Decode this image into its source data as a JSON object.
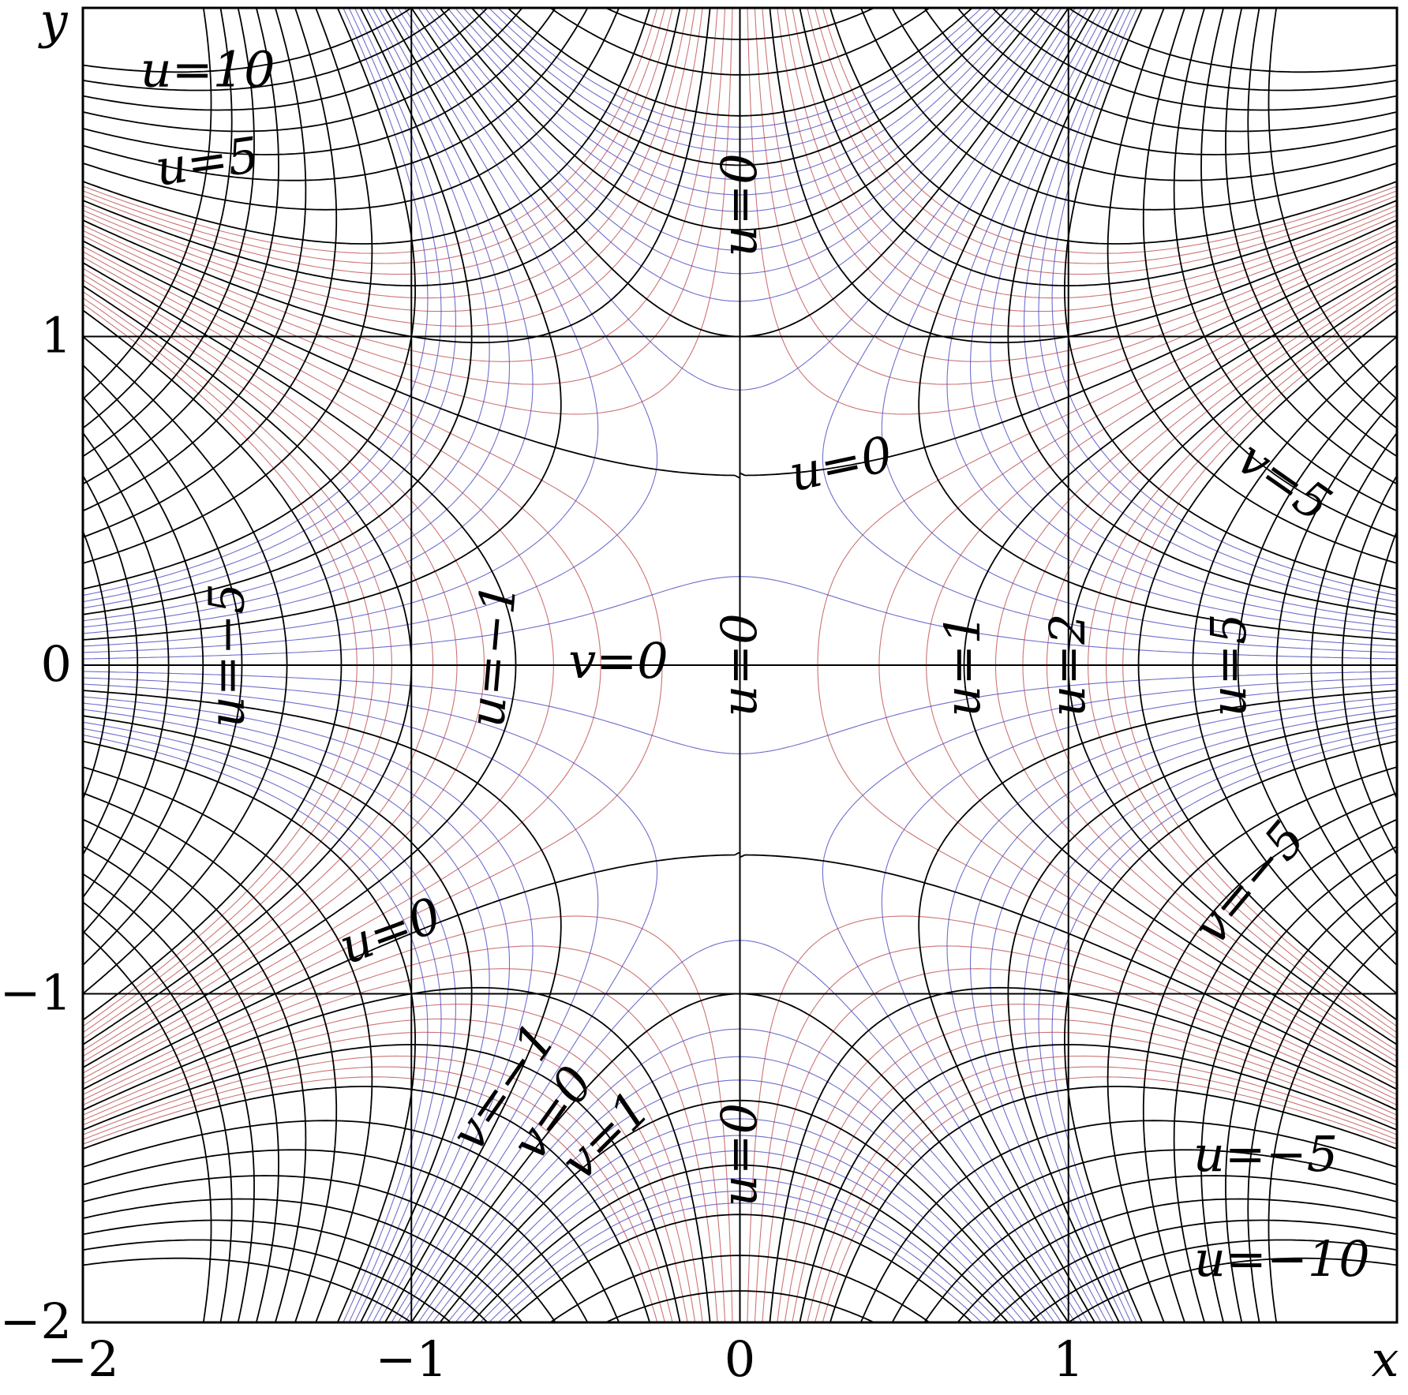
{
  "chart_data": {
    "type": "contour",
    "x_label": "x",
    "y_label": "y",
    "xlim": [
      -2,
      2
    ],
    "ylim": [
      -2,
      2
    ],
    "xticks": [
      {
        "value": -2,
        "label": "−2"
      },
      {
        "value": -1,
        "label": "−1"
      },
      0,
      1
    ],
    "yticks": [
      {
        "value": -2,
        "label": "−2"
      },
      {
        "value": -1,
        "label": "−1"
      },
      0,
      1
    ],
    "grid": true,
    "contours": [
      {
        "field": "u",
        "color": "#c05050",
        "levels": [
          -3,
          -2.75,
          -2.5,
          -2.25,
          -1.75,
          -1.5,
          -1.25,
          -0.75,
          -0.5,
          -0.25,
          0.25,
          0.5,
          0.75,
          1.25,
          1.5,
          1.75,
          2.25,
          2.5,
          2.75,
          3
        ]
      },
      {
        "field": "v",
        "color": "#4a4ac0",
        "levels": [
          -3,
          -2.75,
          -2.5,
          -2.25,
          -1.75,
          -1.5,
          -1.25,
          -0.75,
          -0.5,
          -0.25,
          0.25,
          0.5,
          0.75,
          1.25,
          1.5,
          1.75,
          2.25,
          2.5,
          2.75,
          3
        ]
      },
      {
        "field": "u",
        "color": "#000000",
        "levels": [
          -10,
          -9,
          -8,
          -7,
          -6,
          -5,
          -4,
          -3,
          -2,
          -1,
          0,
          1,
          2,
          3,
          4,
          5,
          6,
          7,
          8,
          9,
          10
        ]
      },
      {
        "field": "v",
        "color": "#000000",
        "levels": [
          -10,
          -9,
          -8,
          -7,
          -6,
          -5,
          -4,
          -3,
          -2,
          -1,
          0,
          1,
          2,
          3,
          4,
          5,
          6,
          7,
          8,
          9,
          10
        ]
      }
    ],
    "annotations": [
      "u=10",
      "u=5",
      "u=0",
      "u=0",
      "v=5",
      "u=−5",
      "u=−1",
      "v=0",
      "u=0",
      "u=1",
      "u=2",
      "u=5",
      "v=−5",
      "u=0",
      "v=−1",
      "v=0",
      "v=1",
      "u=0",
      "u=−5",
      "u=−10"
    ]
  }
}
